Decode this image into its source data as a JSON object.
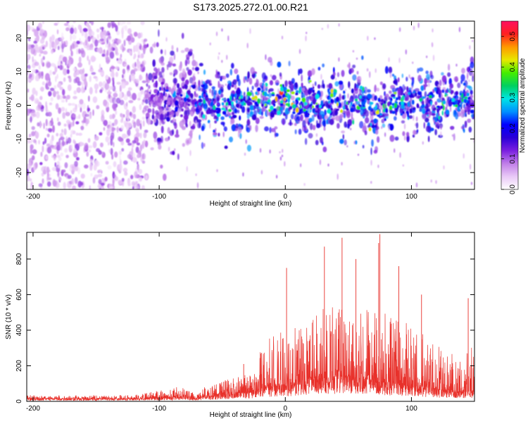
{
  "title": "S173.2025.272.01.00.R21",
  "chart_data": [
    {
      "type": "heatmap",
      "xlabel": "Height of straight line (km)",
      "ylabel": "Frequency (Hz)",
      "xlim": [
        -205,
        150
      ],
      "ylim": [
        -25,
        25
      ],
      "x_ticks": [
        -200,
        -100,
        0,
        100
      ],
      "y_ticks": [
        -20,
        -10,
        0,
        10,
        20
      ],
      "x_tick_labels": [
        "-200",
        "-100",
        "0",
        "100"
      ],
      "y_tick_labels": [
        "-20",
        "-10",
        "0",
        "10",
        "20"
      ],
      "grid": false,
      "colorbar": {
        "label": "Normalized spectral amplitude",
        "range": [
          0.0,
          0.55
        ],
        "ticks": [
          0.0,
          0.1,
          0.2,
          0.3,
          0.4,
          0.5
        ],
        "tick_labels": [
          "0.0",
          "0.1",
          "0.2",
          "0.3",
          "0.4",
          "0.5"
        ],
        "colormap": [
          "#ffffff",
          "#e9c8f7",
          "#c07ee8",
          "#7a1fe0",
          "#2a00d8",
          "#0000ff",
          "#0090ff",
          "#00e5e5",
          "#00d060",
          "#44ee00",
          "#e8e800",
          "#ff9900",
          "#ff2020",
          "#ff1060"
        ]
      },
      "regions": [
        {
          "x_range": [
            -205,
            -110
          ],
          "freq_center": 0,
          "freq_width": 25,
          "level": 0.09,
          "note": "broad diffuse purple"
        },
        {
          "x_range": [
            -110,
            -70
          ],
          "freq_center": 1,
          "freq_width": 8,
          "level": 0.13
        },
        {
          "x_range": [
            -70,
            150
          ],
          "freq_center": 0,
          "freq_width": 5,
          "level": 0.2
        }
      ],
      "track": {
        "x": [
          -110,
          -100,
          -90,
          -80,
          -70,
          -60,
          -50,
          -40,
          -30,
          -20,
          -10,
          0,
          10,
          20,
          30,
          40,
          50,
          60,
          70,
          80,
          90,
          100,
          110,
          120,
          130,
          140,
          150
        ],
        "freq": [
          3,
          2,
          1,
          3,
          2,
          1,
          0,
          1,
          0,
          2,
          1,
          2,
          0,
          1,
          0,
          2,
          -1,
          1,
          -3,
          0,
          1,
          2,
          1,
          0,
          1,
          2,
          2
        ],
        "peak_amplitude": [
          0.15,
          0.18,
          0.2,
          0.26,
          0.28,
          0.25,
          0.28,
          0.3,
          0.33,
          0.35,
          0.35,
          0.42,
          0.36,
          0.32,
          0.34,
          0.36,
          0.33,
          0.36,
          0.33,
          0.38,
          0.3,
          0.32,
          0.3,
          0.32,
          0.3,
          0.34,
          0.3
        ]
      }
    },
    {
      "type": "line",
      "xlabel": "Height of straight line (km)",
      "ylabel": "SNR (10 * v/v)",
      "xlim": [
        -205,
        150
      ],
      "ylim": [
        0,
        950
      ],
      "x_ticks": [
        -200,
        -100,
        0,
        100
      ],
      "y_ticks": [
        0,
        200,
        400,
        600,
        800
      ],
      "x_tick_labels": [
        "-200",
        "-100",
        "0",
        "100"
      ],
      "y_tick_labels": [
        "0",
        "200",
        "400",
        "600",
        "800"
      ],
      "grid": false,
      "series": [
        {
          "color": "#e8302a",
          "envelope": {
            "x": [
              -205,
              -180,
              -150,
              -120,
              -100,
              -80,
              -75,
              -60,
              -40,
              -22,
              -20,
              0,
              20,
              30,
              40,
              50,
              60,
              70,
              80,
              90,
              100,
              110,
              120,
              130,
              140,
              150
            ],
            "baseline": [
              15,
              15,
              15,
              15,
              20,
              25,
              15,
              30,
              45,
              60,
              80,
              90,
              120,
              130,
              140,
              140,
              130,
              120,
              110,
              100,
              90,
              80,
              70,
              60,
              50,
              60
            ],
            "typical_peak": [
              30,
              30,
              28,
              30,
              55,
              70,
              40,
              80,
              110,
              140,
              260,
              330,
              380,
              420,
              430,
              440,
              430,
              420,
              400,
              380,
              330,
              300,
              260,
              230,
              210,
              250
            ]
          },
          "spikes": [
            {
              "x": 31,
              "value": 870
            },
            {
              "x": 45,
              "value": 920
            },
            {
              "x": 56,
              "value": 800
            },
            {
              "x": 75,
              "value": 940
            },
            {
              "x": 74,
              "value": 890
            },
            {
              "x": 1,
              "value": 750
            },
            {
              "x": 90,
              "value": 760
            },
            {
              "x": 145,
              "value": 580
            },
            {
              "x": 108,
              "value": 600
            },
            {
              "x": -33,
              "value": 210
            }
          ]
        }
      ]
    }
  ]
}
